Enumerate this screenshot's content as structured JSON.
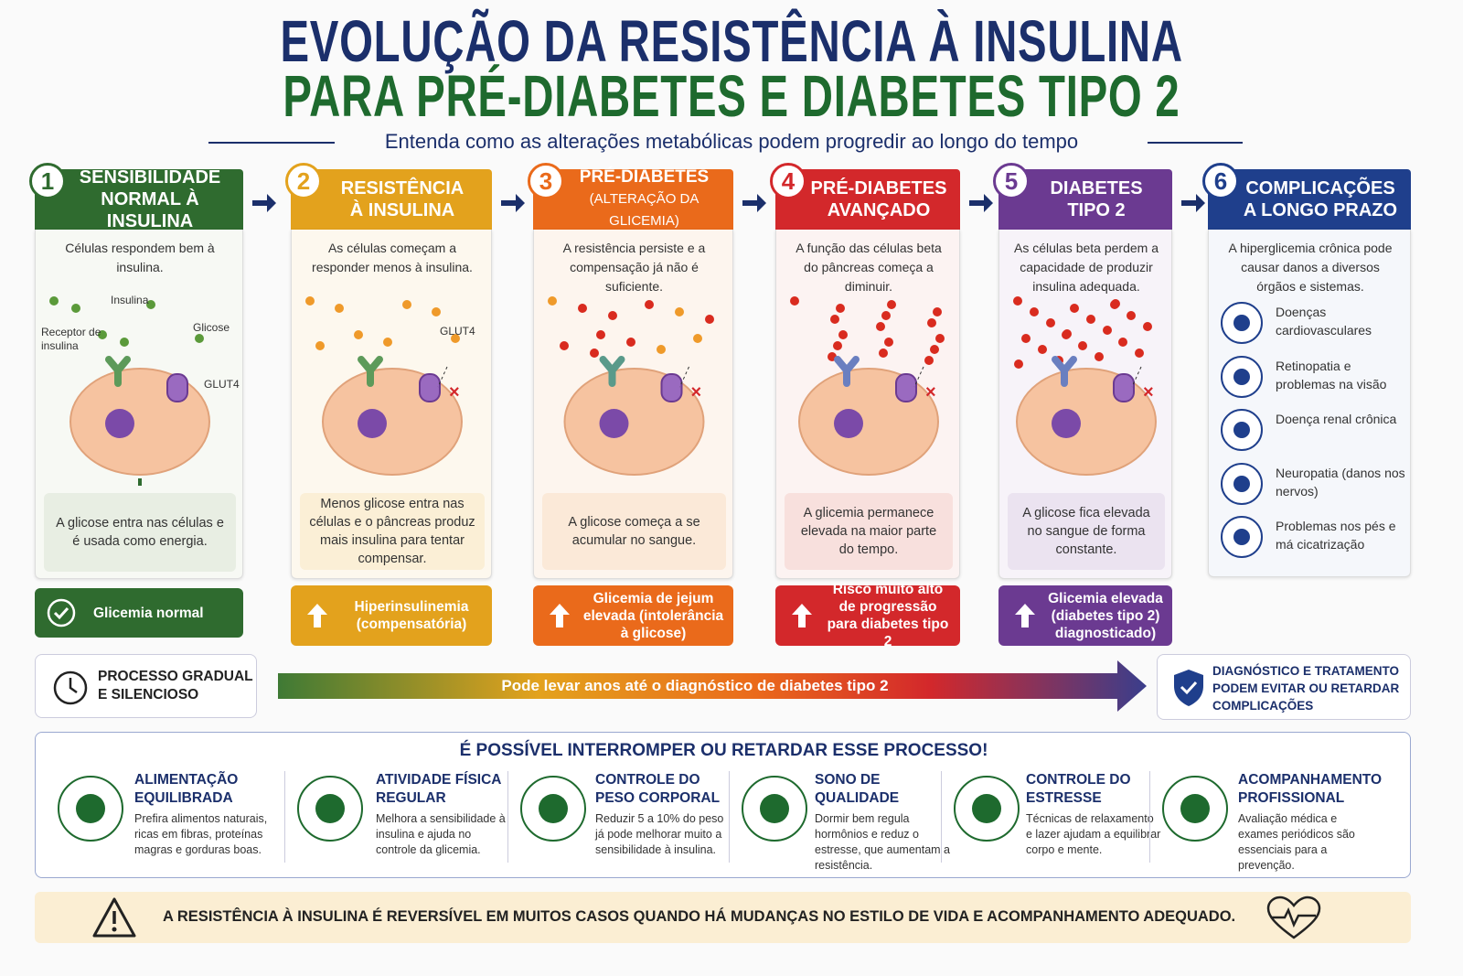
{
  "header": {
    "title_line1": "EVOLUÇÃO DA RESISTÊNCIA À INSULINA",
    "title_line2": "PARA PRÉ-DIABETES E DIABETES TIPO 2",
    "subtitle": "Entenda como as alterações metabólicas podem progredir ao longo do tempo"
  },
  "stages": [
    {
      "number": "1",
      "title": [
        "SENSIBILIDADE",
        "NORMAL À INSULINA"
      ],
      "description": "Células respondem bem à insulina.",
      "labels": [
        "Insulina",
        "Receptor de insulina",
        "Glicose",
        "GLUT4"
      ],
      "result": "A glicose entra nas células e é usada como energia.",
      "badge": "Glicemia normal"
    },
    {
      "number": "2",
      "title": [
        "RESISTÊNCIA",
        "À INSULINA"
      ],
      "description": "As células começam a responder menos à insulina.",
      "labels": [
        "GLUT4"
      ],
      "result": "Menos glicose entra nas células e o pâncreas produz mais insulina para tentar compensar.",
      "badge": "Hiperinsulinemia (compensatória)"
    },
    {
      "number": "3",
      "title": [
        "PRÉ-DIABETES",
        "(ALTERAÇÃO DA GLICEMIA)"
      ],
      "description": "A resistência persiste e a compensação já não é suficiente.",
      "result": "A glicose começa a se acumular no sangue.",
      "badge": "Glicemia de jejum elevada (intolerância à glicose)"
    },
    {
      "number": "4",
      "title": [
        "PRÉ-DIABETES",
        "AVANÇADO"
      ],
      "description": "A função das células beta do pâncreas começa a diminuir.",
      "result": "A glicemia permanece elevada na maior parte do tempo.",
      "badge": "Risco muito alto de progressão para diabetes tipo 2"
    },
    {
      "number": "5",
      "title": [
        "DIABETES",
        "TIPO 2"
      ],
      "description": "As células beta perdem a capacidade de produzir insulina adequada.",
      "result": "A glicose fica elevada no sangue de forma constante.",
      "badge": "Glicemia elevada (diabetes tipo 2) diagnosticado)"
    },
    {
      "number": "6",
      "title": [
        "COMPLICAÇÕES",
        "A LONGO PRAZO"
      ],
      "description": "A hiperglicemia crônica pode causar danos a diversos órgãos e sistemas.",
      "complications": [
        "Doenças cardiovasculares",
        "Retinopatia e problemas na visão",
        "Doença renal crônica",
        "Neuropatia (danos nos nervos)",
        "Problemas nos pés e má cicatrização"
      ]
    }
  ],
  "timeline": {
    "left": "PROCESSO GRADUAL E SILENCIOSO",
    "arrow": "Pode levar anos até o diagnóstico de diabetes tipo 2",
    "right": "DIAGNÓSTICO E TRATAMENTO PODEM EVITAR OU RETARDAR COMPLICAÇÕES"
  },
  "prevention": {
    "title": "É POSSÍVEL INTERROMPER OU RETARDAR ESSE PROCESSO!",
    "items": [
      {
        "title": "ALIMENTAÇÃO EQUILIBRADA",
        "text": "Prefira alimentos naturais, ricas em fibras, proteínas magras e gorduras boas."
      },
      {
        "title": "ATIVIDADE FÍSICA REGULAR",
        "text": "Melhora a sensibilidade à insulina e ajuda no controle da glicemia."
      },
      {
        "title": "CONTROLE DO PESO CORPORAL",
        "text": "Reduzir 5 a 10% do peso já pode melhorar muito a sensibilidade à insulina."
      },
      {
        "title": "SONO DE QUALIDADE",
        "text": "Dormir bem regula hormônios e reduz o estresse, que aumentam a resistência."
      },
      {
        "title": "CONTROLE DO ESTRESSE",
        "text": "Técnicas de relaxamento e lazer ajudam a equilibrar corpo e mente."
      },
      {
        "title": "ACOMPANHAMENTO PROFISSIONAL",
        "text": "Avaliação médica e exames periódicos são essenciais para a prevenção."
      }
    ]
  },
  "footer": "A RESISTÊNCIA À INSULINA É REVERSÍVEL EM MUITOS CASOS QUANDO HÁ MUDANÇAS NO ESTILO DE VIDA E ACOMPANHAMENTO ADEQUADO."
}
